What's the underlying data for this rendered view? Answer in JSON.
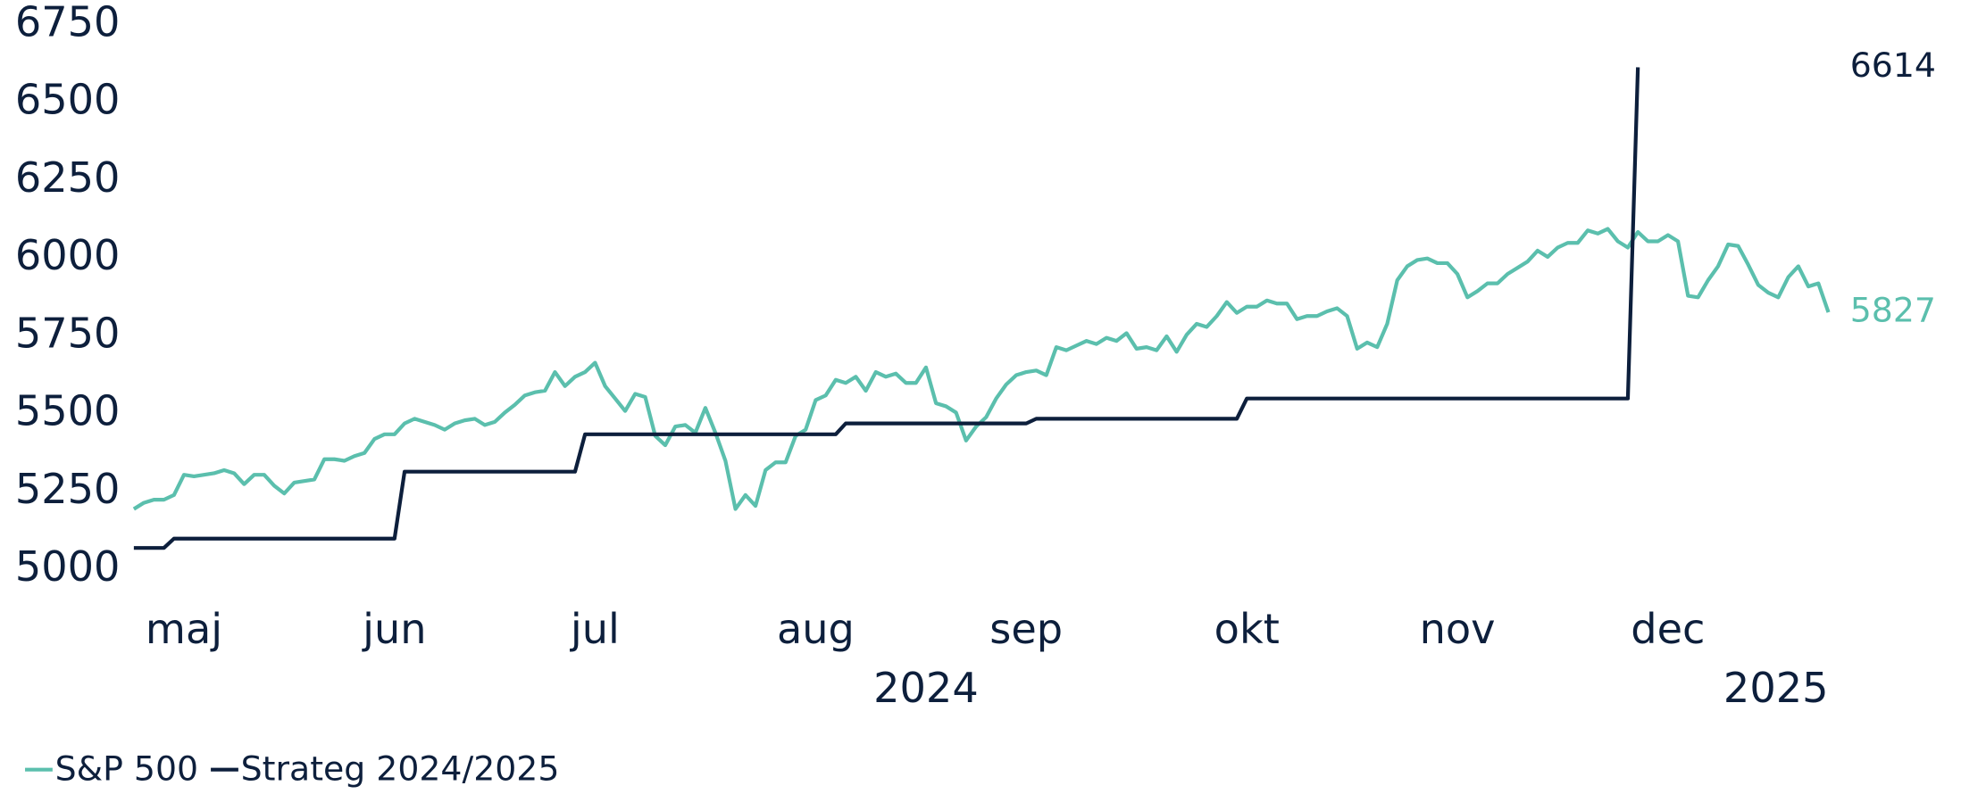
{
  "chart_data": {
    "type": "line",
    "categories": [
      null,
      null,
      null,
      null,
      null,
      "maj",
      null,
      null,
      null,
      null,
      null,
      null,
      null,
      null,
      null,
      null,
      null,
      null,
      null,
      null,
      null,
      null,
      null,
      null,
      null,
      null,
      "jun",
      null,
      null,
      null,
      null,
      null,
      null,
      null,
      null,
      null,
      null,
      null,
      null,
      null,
      null,
      null,
      null,
      null,
      null,
      null,
      "jul",
      null,
      null,
      null,
      null,
      null,
      null,
      null,
      null,
      null,
      null,
      null,
      null,
      null,
      null,
      null,
      null,
      null,
      null,
      null,
      null,
      null,
      "aug",
      null,
      null,
      null,
      null,
      null,
      null,
      null,
      null,
      null,
      null,
      null,
      null,
      null,
      null,
      null,
      null,
      null,
      null,
      null,
      null,
      "sep",
      null,
      null,
      null,
      null,
      null,
      null,
      null,
      null,
      null,
      null,
      null,
      null,
      null,
      null,
      null,
      null,
      null,
      null,
      null,
      null,
      null,
      "okt",
      null,
      null,
      null,
      null,
      null,
      null,
      null,
      null,
      null,
      null,
      null,
      null,
      null,
      null,
      null,
      null,
      null,
      null,
      null,
      null,
      "nov",
      null,
      null,
      null,
      null,
      null,
      null,
      null,
      null,
      null,
      null,
      null,
      null,
      null,
      null,
      null,
      null,
      null,
      null,
      null,
      null,
      "dec",
      null,
      null,
      null,
      null,
      null,
      null,
      null,
      null,
      null,
      null,
      null,
      null,
      null,
      null,
      null,
      null
    ],
    "x_years": [
      null,
      null,
      null,
      null,
      null,
      null,
      null,
      null,
      null,
      null,
      null,
      null,
      null,
      null,
      null,
      null,
      null,
      null,
      null,
      null,
      null,
      null,
      null,
      null,
      null,
      null,
      null,
      null,
      null,
      null,
      null,
      null,
      null,
      null,
      null,
      null,
      null,
      null,
      null,
      null,
      null,
      null,
      null,
      null,
      null,
      null,
      null,
      null,
      null,
      null,
      null,
      null,
      null,
      null,
      null,
      null,
      null,
      null,
      null,
      null,
      null,
      null,
      null,
      null,
      null,
      null,
      null,
      null,
      null,
      null,
      null,
      null,
      null,
      null,
      null,
      null,
      null,
      null,
      null,
      "2024",
      null,
      null,
      null,
      null,
      null,
      null,
      null,
      null,
      null,
      null,
      null,
      null,
      null,
      null,
      null,
      null,
      null,
      null,
      null,
      null,
      null,
      null,
      null,
      null,
      null,
      null,
      null,
      null,
      null,
      null,
      null,
      null,
      null,
      null,
      null,
      null,
      null,
      null,
      null,
      null,
      null,
      null,
      null,
      null,
      null,
      null,
      null,
      null,
      null,
      null,
      null,
      null,
      null,
      null,
      null,
      null,
      null,
      null,
      null,
      null,
      null,
      null,
      null,
      null,
      null,
      null,
      null,
      null,
      null,
      null,
      null,
      null,
      null,
      null,
      null,
      null,
      null,
      null,
      null,
      null,
      null,
      null,
      null,
      null,
      null,
      null,
      null,
      null,
      null,
      "2025"
    ],
    "series": [
      {
        "name": "S&P 500",
        "color": "#5bbfad",
        "values": [
          5195,
          5215,
          5225,
          5225,
          5240,
          5305,
          5300,
          5305,
          5310,
          5320,
          5310,
          5275,
          5305,
          5305,
          5270,
          5245,
          5280,
          5285,
          5290,
          5355,
          5355,
          5350,
          5365,
          5375,
          5420,
          5435,
          5435,
          5470,
          5485,
          5475,
          5465,
          5450,
          5470,
          5480,
          5485,
          5465,
          5475,
          5505,
          5530,
          5560,
          5570,
          5575,
          5635,
          5590,
          5620,
          5635,
          5665,
          5590,
          5550,
          5510,
          5565,
          5555,
          5430,
          5400,
          5460,
          5465,
          5440,
          5520,
          5440,
          5350,
          5195,
          5240,
          5205,
          5320,
          5345,
          5345,
          5430,
          5450,
          5545,
          5560,
          5610,
          5600,
          5620,
          5575,
          5635,
          5620,
          5630,
          5600,
          5600,
          5650,
          5535,
          5525,
          5505,
          5415,
          5460,
          5490,
          5550,
          5595,
          5625,
          5635,
          5640,
          5625,
          5715,
          5705,
          5720,
          5735,
          5725,
          5745,
          5735,
          5760,
          5710,
          5715,
          5705,
          5750,
          5700,
          5755,
          5790,
          5780,
          5815,
          5860,
          5825,
          5845,
          5845,
          5865,
          5855,
          5855,
          5805,
          5815,
          5815,
          5830,
          5840,
          5815,
          5710,
          5730,
          5715,
          5790,
          5930,
          5975,
          5995,
          6000,
          5985,
          5985,
          5950,
          5875,
          5895,
          5920,
          5920,
          5950,
          5970,
          5990,
          6025,
          6005,
          6035,
          6050,
          6050,
          6090,
          6080,
          6095,
          6055,
          6035,
          6085,
          6055,
          6055,
          6075,
          6055,
          5880,
          5875,
          5930,
          5975,
          6045,
          6040,
          5980,
          5915,
          5890,
          5875,
          5940,
          5975,
          5910,
          5920,
          5827
        ]
      },
      {
        "name": "Strateg 2024/2025",
        "color": "#0d1f3c",
        "values": [
          5070,
          5070,
          5070,
          5070,
          5100,
          5100,
          5100,
          5100,
          5100,
          5100,
          5100,
          5100,
          5100,
          5100,
          5100,
          5100,
          5100,
          5100,
          5100,
          5100,
          5100,
          5100,
          5100,
          5100,
          5100,
          5100,
          5100,
          5315,
          5315,
          5315,
          5315,
          5315,
          5315,
          5315,
          5315,
          5315,
          5315,
          5315,
          5315,
          5315,
          5315,
          5315,
          5315,
          5315,
          5315,
          5435,
          5435,
          5435,
          5435,
          5435,
          5435,
          5435,
          5435,
          5435,
          5435,
          5435,
          5435,
          5435,
          5435,
          5435,
          5435,
          5435,
          5435,
          5435,
          5435,
          5435,
          5435,
          5435,
          5435,
          5435,
          5435,
          5470,
          5470,
          5470,
          5470,
          5470,
          5470,
          5470,
          5470,
          5470,
          5470,
          5470,
          5470,
          5470,
          5470,
          5470,
          5470,
          5470,
          5470,
          5470,
          5485,
          5485,
          5485,
          5485,
          5485,
          5485,
          5485,
          5485,
          5485,
          5485,
          5485,
          5485,
          5485,
          5485,
          5485,
          5485,
          5485,
          5485,
          5485,
          5485,
          5485,
          5550,
          5550,
          5550,
          5550,
          5550,
          5550,
          5550,
          5550,
          5550,
          5550,
          5550,
          5550,
          5550,
          5550,
          5550,
          5550,
          5550,
          5550,
          5550,
          5550,
          5550,
          5550,
          5550,
          5550,
          5550,
          5550,
          5550,
          5550,
          5550,
          5550,
          5550,
          5550,
          5550,
          5550,
          5550,
          5550,
          5550,
          5550,
          5550,
          6614,
          null,
          null,
          null,
          null,
          null,
          null,
          null,
          null,
          null,
          null,
          null,
          null,
          null,
          null,
          null,
          null,
          null,
          null,
          null
        ]
      }
    ],
    "ylim": [
      5000,
      6750
    ],
    "yticks": [
      5000,
      5250,
      5500,
      5750,
      6000,
      6250,
      6500,
      6750
    ],
    "grid": false,
    "legend": "bottom-left"
  }
}
